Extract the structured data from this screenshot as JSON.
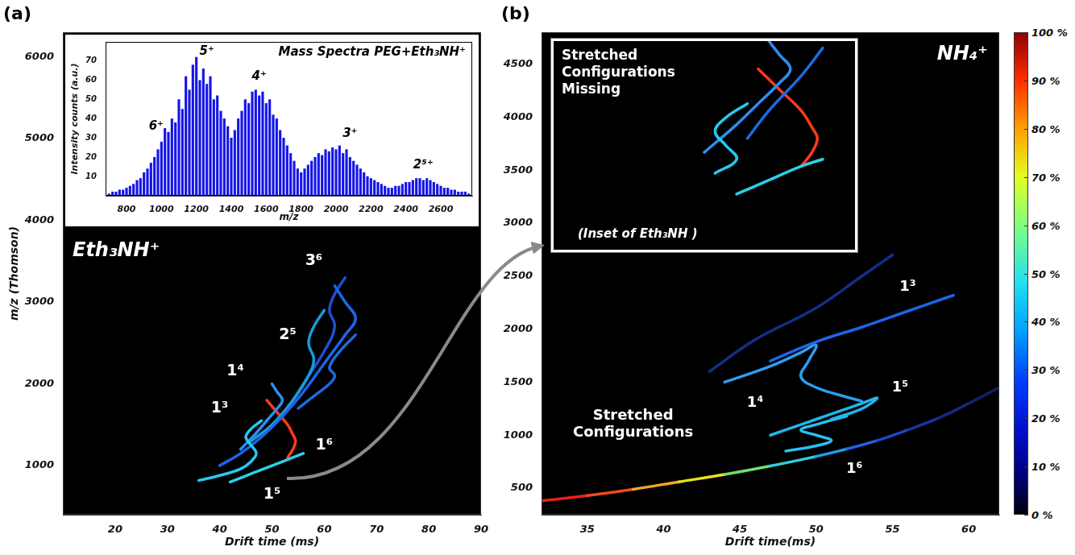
{
  "chart_data": [
    {
      "panel_label": "(a)",
      "type": "line",
      "title": "Eth₃NH⁺",
      "x_label": "Drift time (ms)",
      "y_label": "m/z (Thomson)",
      "xlim": [
        10,
        90
      ],
      "xticks": [
        20,
        30,
        40,
        50,
        60,
        70,
        80,
        90
      ],
      "ylim": [
        400,
        6300
      ],
      "yticks": [
        1000,
        2000,
        3000,
        4000,
        5000,
        6000
      ],
      "grid": false,
      "series": [
        {
          "color": "#29c8f0",
          "values": [
            [
              36,
              820
            ],
            [
              40,
              880
            ],
            [
              44,
              960
            ],
            [
              46,
              1050
            ],
            [
              47,
              1150
            ],
            [
              46,
              1250
            ],
            [
              45,
              1350
            ],
            [
              46,
              1450
            ],
            [
              48,
              1550
            ]
          ]
        },
        {
          "color": "#1e64e8",
          "values": [
            [
              40,
              1000
            ],
            [
              44,
              1150
            ],
            [
              48,
              1350
            ],
            [
              52,
              1600
            ],
            [
              56,
              1900
            ],
            [
              60,
              2250
            ],
            [
              64,
              2600
            ],
            [
              66,
              2800
            ],
            [
              64,
              3000
            ],
            [
              62,
              3200
            ]
          ]
        },
        {
          "color": "#1a9ad8",
          "values": [
            [
              46,
              1300
            ],
            [
              50,
              1500
            ],
            [
              54,
              1800
            ],
            [
              57,
              2100
            ],
            [
              58,
              2300
            ],
            [
              57,
              2500
            ],
            [
              58,
              2700
            ],
            [
              60,
              2900
            ]
          ]
        },
        {
          "color": "#1e50d0",
          "values": [
            [
              52,
              1600
            ],
            [
              56,
              2000
            ],
            [
              60,
              2400
            ],
            [
              62,
              2700
            ],
            [
              61,
              2900
            ],
            [
              62,
              3100
            ],
            [
              64,
              3300
            ]
          ]
        },
        {
          "color": "#2a8ff0",
          "values": [
            [
              44,
              1200
            ],
            [
              47,
              1400
            ],
            [
              49,
              1550
            ],
            [
              51,
              1700
            ],
            [
              52,
              1800
            ],
            [
              51,
              1900
            ],
            [
              50,
              2000
            ]
          ]
        },
        {
          "color": "#1e6ae0",
          "values": [
            [
              55,
              1700
            ],
            [
              58,
              1850
            ],
            [
              61,
              2000
            ],
            [
              62,
              2100
            ],
            [
              61,
              2200
            ],
            [
              63,
              2400
            ],
            [
              66,
              2600
            ]
          ]
        },
        {
          "color": "#2ad0e8",
          "values": [
            [
              42,
              800
            ],
            [
              46,
              900
            ],
            [
              50,
              1000
            ],
            [
              54,
              1100
            ],
            [
              56,
              1150
            ]
          ]
        },
        {
          "color": "#ff3a1a",
          "values": [
            [
              49,
              1800
            ],
            [
              51,
              1650
            ],
            [
              53,
              1500
            ],
            [
              54,
              1380
            ],
            [
              54.5,
              1300
            ],
            [
              54,
              1200
            ],
            [
              53,
              1100
            ]
          ]
        }
      ],
      "annotations": [
        {
          "text": "3⁶",
          "x": 58,
          "y": 3500
        },
        {
          "text": "2⁵",
          "x": 53,
          "y": 2600
        },
        {
          "text": "1⁴",
          "x": 43,
          "y": 2150
        },
        {
          "text": "1³",
          "x": 40,
          "y": 1700
        },
        {
          "text": "1⁶",
          "x": 60,
          "y": 1250
        },
        {
          "text": "1⁵",
          "x": 50,
          "y": 650
        }
      ]
    },
    {
      "type": "bar",
      "title": "Mass Spectra PEG+Eth₃NH⁺",
      "x_label": "m/z",
      "y_label": "Intensity counts (a.u.)",
      "xlim": [
        680,
        2780
      ],
      "xticks": [
        800,
        1000,
        1200,
        1400,
        1600,
        1800,
        2000,
        2200,
        2400,
        2600
      ],
      "ylim": [
        0,
        80
      ],
      "yticks": [
        10,
        20,
        30,
        40,
        50,
        60,
        70
      ],
      "grid": false,
      "color": "#1515e8",
      "x": [
        700,
        720,
        740,
        760,
        780,
        800,
        820,
        840,
        860,
        880,
        900,
        920,
        940,
        960,
        980,
        1000,
        1020,
        1040,
        1060,
        1080,
        1100,
        1120,
        1140,
        1160,
        1180,
        1200,
        1220,
        1240,
        1260,
        1280,
        1300,
        1320,
        1340,
        1360,
        1380,
        1400,
        1420,
        1440,
        1460,
        1480,
        1500,
        1520,
        1540,
        1560,
        1580,
        1600,
        1620,
        1640,
        1660,
        1680,
        1700,
        1720,
        1740,
        1760,
        1780,
        1800,
        1820,
        1840,
        1860,
        1880,
        1900,
        1920,
        1940,
        1960,
        1980,
        2000,
        2020,
        2040,
        2060,
        2080,
        2100,
        2120,
        2140,
        2160,
        2180,
        2200,
        2220,
        2240,
        2260,
        2280,
        2300,
        2320,
        2340,
        2360,
        2380,
        2400,
        2420,
        2440,
        2460,
        2480,
        2500,
        2520,
        2540,
        2560,
        2580,
        2600,
        2620,
        2640,
        2660,
        2680,
        2700,
        2720,
        2740,
        2760
      ],
      "values": [
        1,
        2,
        2,
        3,
        3,
        4,
        5,
        6,
        8,
        9,
        12,
        14,
        17,
        20,
        24,
        28,
        35,
        33,
        40,
        38,
        50,
        45,
        62,
        55,
        68,
        72,
        60,
        66,
        58,
        62,
        50,
        52,
        44,
        40,
        36,
        30,
        34,
        40,
        44,
        50,
        48,
        54,
        55,
        52,
        54,
        48,
        50,
        42,
        40,
        34,
        30,
        26,
        22,
        18,
        14,
        12,
        14,
        16,
        18,
        20,
        22,
        21,
        24,
        23,
        25,
        24,
        26,
        22,
        24,
        20,
        18,
        16,
        14,
        12,
        10,
        9,
        8,
        7,
        6,
        5,
        4,
        4,
        5,
        5,
        6,
        7,
        7,
        8,
        9,
        9,
        8,
        9,
        8,
        7,
        6,
        5,
        4,
        4,
        3,
        3,
        2,
        2,
        2,
        1
      ],
      "annotations": [
        {
          "text": "6⁺",
          "x": 970,
          "y": 36
        },
        {
          "text": "5⁺",
          "x": 1260,
          "y": 75
        },
        {
          "text": "4⁺",
          "x": 1560,
          "y": 62
        },
        {
          "text": "3⁺",
          "x": 2080,
          "y": 32
        },
        {
          "text": "2⁵⁺",
          "x": 2500,
          "y": 16
        }
      ]
    },
    {
      "panel_label": "(b)",
      "type": "line",
      "title": "NH₄⁺",
      "x_label": "Drift time(ms)",
      "xlim": [
        32,
        62
      ],
      "xticks": [
        35,
        40,
        45,
        50,
        55,
        60
      ],
      "ylim": [
        250,
        4800
      ],
      "yticks": [
        500,
        1000,
        1500,
        2000,
        2500,
        3000,
        3500,
        4000,
        4500
      ],
      "grid": false,
      "series": [
        {
          "colors": [
            "#e8201a",
            "#f04a1a",
            "#f5a623",
            "#e6e21e",
            "#6fe06a",
            "#2ad1e0",
            "#1ea0e8",
            "#1e64e8",
            "#1e46c8",
            "#1a34a0",
            "#162a80",
            "#12206a",
            "#101a5a"
          ],
          "values": [
            [
              32,
              380
            ],
            [
              35,
              430
            ],
            [
              38,
              490
            ],
            [
              41,
              560
            ],
            [
              44,
              630
            ],
            [
              47,
              710
            ],
            [
              50,
              800
            ],
            [
              52,
              870
            ],
            [
              54,
              950
            ],
            [
              56,
              1050
            ],
            [
              58,
              1160
            ],
            [
              60,
              1300
            ],
            [
              62,
              1450
            ]
          ]
        },
        {
          "color": "#12308a",
          "values": [
            [
              43,
              1600
            ],
            [
              46,
              1900
            ],
            [
              50,
              2200
            ],
            [
              53,
              2500
            ],
            [
              55,
              2700
            ]
          ]
        },
        {
          "color": "#1e64e8",
          "values": [
            [
              47,
              1700
            ],
            [
              50,
              1880
            ],
            [
              53,
              2020
            ],
            [
              56,
              2170
            ],
            [
              59,
              2320
            ]
          ]
        },
        {
          "color": "#2a9ff0",
          "values": [
            [
              44,
              1500
            ],
            [
              47,
              1650
            ],
            [
              49,
              1780
            ],
            [
              50,
              1850
            ],
            [
              49.5,
              1700
            ],
            [
              49,
              1550
            ],
            [
              50,
              1450
            ],
            [
              51.5,
              1380
            ],
            [
              53,
              1320
            ]
          ]
        },
        {
          "color": "#23b5ea",
          "values": [
            [
              47,
              1000
            ],
            [
              49,
              1100
            ],
            [
              51,
              1200
            ],
            [
              53,
              1300
            ],
            [
              54,
              1350
            ],
            [
              53,
              1250
            ],
            [
              51,
              1150
            ]
          ]
        },
        {
          "color": "#2ac0f0",
          "values": [
            [
              48,
              850
            ],
            [
              50,
              900
            ],
            [
              51,
              950
            ],
            [
              50,
              1000
            ],
            [
              49,
              1050
            ],
            [
              50,
              1100
            ],
            [
              52,
              1180
            ]
          ]
        }
      ],
      "annotations": [
        {
          "text": "1³",
          "x": 56,
          "y": 2400
        },
        {
          "text": "1⁴",
          "x": 46,
          "y": 1300
        },
        {
          "text": "1⁵",
          "x": 55.5,
          "y": 1450
        },
        {
          "text": "1⁶",
          "x": 52.5,
          "y": 680
        },
        {
          "text": "Stretched Configurations",
          "x": 38,
          "y": 1100
        }
      ],
      "colorbar": {
        "range": [
          0,
          100
        ],
        "ticks": [
          {
            "value": 0,
            "label": "0 %"
          },
          {
            "value": 10,
            "label": "10 %"
          },
          {
            "value": 20,
            "label": "20 %"
          },
          {
            "value": 30,
            "label": "30 %"
          },
          {
            "value": 40,
            "label": "40 %"
          },
          {
            "value": 50,
            "label": "50 %"
          },
          {
            "value": 60,
            "label": "60 %"
          },
          {
            "value": 70,
            "label": "70 %"
          },
          {
            "value": 80,
            "label": "80 %"
          },
          {
            "value": 90,
            "label": "90 %"
          },
          {
            "value": 100,
            "label": "100 %"
          }
        ]
      }
    },
    {
      "type": "line",
      "title": "Stretched Configurations Missing",
      "subtitle": "(Inset of Eth₃NH )",
      "tick_labels": false,
      "grid": false,
      "xlim": [
        30,
        58
      ],
      "ylim": [
        500,
        2000
      ],
      "series": [
        {
          "color": "#29c8f0",
          "values": [
            [
              45,
              1050
            ],
            [
              47,
              1150
            ],
            [
              46,
              1250
            ],
            [
              45,
              1350
            ],
            [
              46,
              1450
            ],
            [
              48,
              1550
            ]
          ]
        },
        {
          "color": "#2a8ff0",
          "values": [
            [
              44,
              1200
            ],
            [
              47,
              1400
            ],
            [
              49,
              1550
            ],
            [
              51,
              1700
            ],
            [
              52,
              1800
            ],
            [
              51,
              1900
            ],
            [
              50,
              2000
            ]
          ]
        },
        {
          "color": "#1e6ae0",
          "values": [
            [
              48,
              1300
            ],
            [
              50,
              1500
            ],
            [
              53,
              1750
            ],
            [
              55,
              1950
            ]
          ]
        },
        {
          "color": "#2ad0e8",
          "values": [
            [
              47,
              900
            ],
            [
              50,
              1000
            ],
            [
              53,
              1100
            ],
            [
              55,
              1150
            ]
          ]
        },
        {
          "color": "#ff3a1a",
          "values": [
            [
              49,
              1800
            ],
            [
              51,
              1650
            ],
            [
              53,
              1500
            ],
            [
              54,
              1380
            ],
            [
              54.5,
              1300
            ],
            [
              54,
              1200
            ],
            [
              53,
              1100
            ]
          ]
        }
      ]
    }
  ]
}
